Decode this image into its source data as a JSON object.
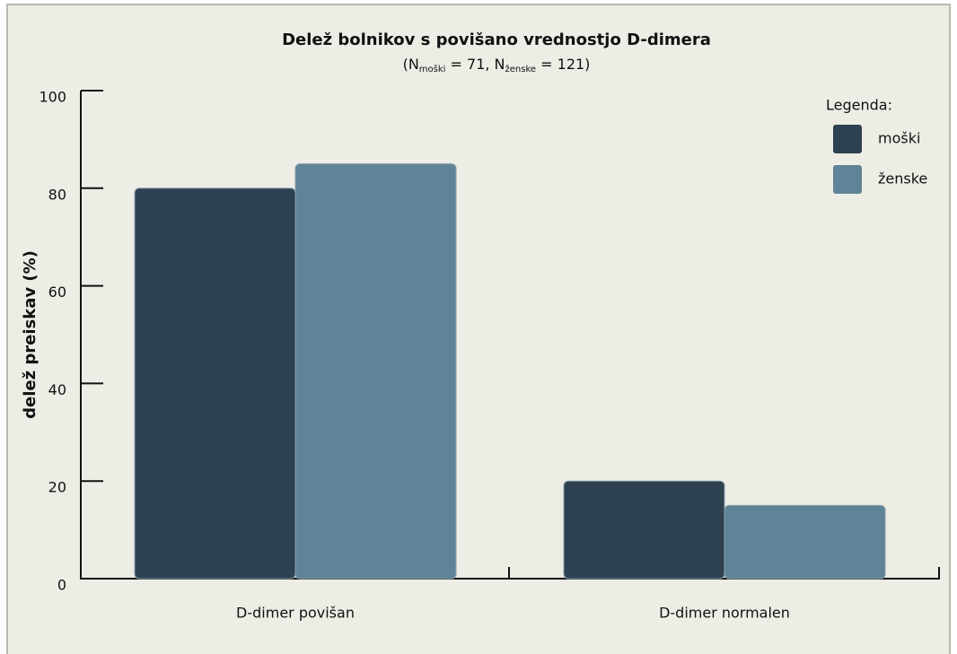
{
  "chart_data": {
    "type": "bar",
    "title": "Delež bolnikov s povišano vrednostjo D-dimera",
    "subtitle": [
      "(N",
      "moški",
      " = 71, N",
      "ženske",
      " = 121)"
    ],
    "ylabel": "delež preiskav (%)",
    "categories": [
      "D-dimer povišan",
      "D-dimer normalen"
    ],
    "series": [
      {
        "name": "moški",
        "color": "#2d4150",
        "values": [
          80,
          20
        ]
      },
      {
        "name": "ženske",
        "color": "#5f8497",
        "values": [
          85,
          15
        ]
      }
    ],
    "ylim": [
      0,
      100
    ],
    "yticks": [
      0,
      20,
      40,
      60,
      80,
      100
    ],
    "legend_title": "Legenda:",
    "legend": "top-right"
  }
}
